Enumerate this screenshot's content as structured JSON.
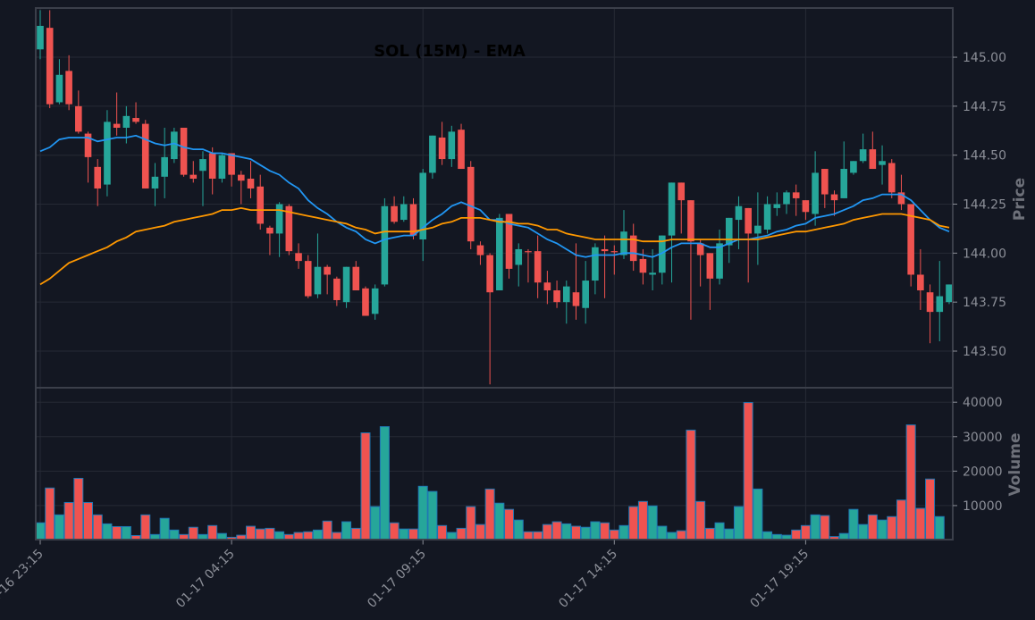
{
  "chart_data": {
    "type": "candlestick",
    "title": "SOL (15M) - EMA",
    "colors": {
      "background": "#131722",
      "up": "#26a69a",
      "down": "#ef5350",
      "ema_fast": "#2196f3",
      "ema_slow": "#ff9800",
      "grid": "#262a35",
      "axis": "#3b3f4a",
      "volume_edge": "#1f77b4"
    },
    "price_panel": {
      "ylabel": "Price",
      "ylim": [
        143.313,
        145.251
      ],
      "yticks": [
        143.5,
        143.75,
        144.0,
        144.25,
        144.5,
        144.75,
        145.0
      ],
      "ytick_labels": [
        "143.50",
        "143.75",
        "144.00",
        "144.25",
        "144.50",
        "144.75",
        "145.00"
      ],
      "grid": true,
      "ohlc_fields": [
        "open",
        "high",
        "low",
        "close"
      ],
      "ohlc": [
        [
          145.04,
          145.24,
          144.99,
          145.16
        ],
        [
          145.15,
          145.24,
          144.74,
          144.76
        ],
        [
          144.77,
          144.99,
          144.76,
          144.91
        ],
        [
          144.93,
          145.01,
          144.73,
          144.76
        ],
        [
          144.75,
          144.83,
          144.61,
          144.62
        ],
        [
          144.61,
          144.62,
          144.36,
          144.49
        ],
        [
          144.44,
          144.48,
          144.24,
          144.33
        ],
        [
          144.35,
          144.73,
          144.29,
          144.67
        ],
        [
          144.66,
          144.82,
          144.6,
          144.64
        ],
        [
          144.64,
          144.75,
          144.56,
          144.7
        ],
        [
          144.69,
          144.77,
          144.66,
          144.67
        ],
        [
          144.66,
          144.68,
          144.33,
          144.33
        ],
        [
          144.33,
          144.46,
          144.24,
          144.39
        ],
        [
          144.39,
          144.64,
          144.28,
          144.49
        ],
        [
          144.48,
          144.64,
          144.46,
          144.62
        ],
        [
          144.64,
          144.64,
          144.39,
          144.4
        ],
        [
          144.4,
          144.47,
          144.36,
          144.38
        ],
        [
          144.42,
          144.52,
          144.24,
          144.48
        ],
        [
          144.51,
          144.54,
          144.3,
          144.38
        ],
        [
          144.38,
          144.51,
          144.36,
          144.5
        ],
        [
          144.51,
          144.51,
          144.34,
          144.4
        ],
        [
          144.4,
          144.42,
          144.25,
          144.37
        ],
        [
          144.38,
          144.47,
          144.28,
          144.33
        ],
        [
          144.34,
          144.4,
          144.12,
          144.15
        ],
        [
          144.13,
          144.14,
          143.99,
          144.1
        ],
        [
          144.1,
          144.26,
          143.98,
          144.25
        ],
        [
          144.24,
          144.25,
          143.99,
          144.01
        ],
        [
          144.0,
          144.05,
          143.92,
          143.96
        ],
        [
          143.96,
          143.99,
          143.77,
          143.78
        ],
        [
          143.79,
          144.1,
          143.77,
          143.93
        ],
        [
          143.93,
          143.94,
          143.79,
          143.89
        ],
        [
          143.87,
          143.88,
          143.73,
          143.76
        ],
        [
          143.75,
          143.93,
          143.72,
          143.93
        ],
        [
          143.93,
          143.96,
          143.81,
          143.81
        ],
        [
          143.82,
          143.83,
          143.68,
          143.68
        ],
        [
          143.69,
          143.84,
          143.66,
          143.82
        ],
        [
          143.84,
          144.28,
          143.83,
          144.24
        ],
        [
          144.24,
          144.29,
          144.15,
          144.16
        ],
        [
          144.17,
          144.29,
          144.16,
          144.25
        ],
        [
          144.25,
          144.28,
          144.07,
          144.09
        ],
        [
          144.07,
          144.43,
          143.96,
          144.41
        ],
        [
          144.41,
          144.6,
          144.38,
          144.6
        ],
        [
          144.59,
          144.67,
          144.45,
          144.48
        ],
        [
          144.48,
          144.65,
          144.44,
          144.62
        ],
        [
          144.63,
          144.66,
          144.43,
          144.43
        ],
        [
          144.44,
          144.47,
          144.02,
          144.06
        ],
        [
          144.04,
          144.06,
          143.94,
          143.99
        ],
        [
          143.99,
          144.0,
          143.33,
          143.8
        ],
        [
          143.81,
          144.2,
          143.81,
          144.18
        ],
        [
          144.2,
          144.2,
          143.87,
          143.92
        ],
        [
          143.94,
          144.05,
          143.83,
          144.02
        ],
        [
          144.01,
          144.02,
          143.85,
          144.005
        ],
        [
          144.01,
          144.09,
          143.77,
          143.85
        ],
        [
          143.85,
          143.91,
          143.74,
          143.81
        ],
        [
          143.81,
          143.86,
          143.72,
          143.75
        ],
        [
          143.75,
          143.86,
          143.64,
          143.83
        ],
        [
          143.8,
          144.05,
          143.66,
          143.73
        ],
        [
          143.72,
          143.96,
          143.64,
          143.86
        ],
        [
          143.86,
          144.05,
          143.79,
          144.03
        ],
        [
          144.02,
          144.09,
          143.77,
          144.01
        ],
        [
          144.01,
          144.04,
          143.89,
          144.005
        ],
        [
          143.99,
          144.22,
          143.97,
          144.11
        ],
        [
          144.09,
          144.15,
          143.91,
          143.96
        ],
        [
          143.97,
          144.02,
          143.84,
          143.9
        ],
        [
          143.89,
          144.02,
          143.81,
          143.9
        ],
        [
          143.9,
          144.09,
          143.84,
          144.09
        ],
        [
          144.09,
          144.36,
          143.85,
          144.36
        ],
        [
          144.36,
          144.36,
          144.1,
          144.27
        ],
        [
          144.27,
          144.27,
          143.66,
          144.06
        ],
        [
          144.05,
          144.07,
          143.83,
          143.99
        ],
        [
          144.0,
          144.0,
          143.71,
          143.87
        ],
        [
          143.87,
          144.12,
          143.84,
          144.05
        ],
        [
          144.04,
          144.18,
          143.95,
          144.18
        ],
        [
          144.17,
          144.29,
          144.02,
          144.24
        ],
        [
          144.23,
          144.23,
          143.85,
          144.1
        ],
        [
          144.1,
          144.31,
          143.94,
          144.14
        ],
        [
          144.12,
          144.29,
          144.1,
          144.25
        ],
        [
          144.23,
          144.31,
          144.19,
          144.25
        ],
        [
          144.25,
          144.32,
          144.2,
          144.31
        ],
        [
          144.31,
          144.35,
          144.19,
          144.28
        ],
        [
          144.27,
          144.27,
          144.17,
          144.21
        ],
        [
          144.2,
          144.52,
          144.14,
          144.41
        ],
        [
          144.43,
          144.43,
          144.23,
          144.3
        ],
        [
          144.3,
          144.32,
          144.19,
          144.27
        ],
        [
          144.28,
          144.57,
          144.28,
          144.43
        ],
        [
          144.41,
          144.47,
          144.4,
          144.47
        ],
        [
          144.47,
          144.61,
          144.46,
          144.53
        ],
        [
          144.53,
          144.62,
          144.43,
          144.43
        ],
        [
          144.45,
          144.55,
          144.35,
          144.47
        ],
        [
          144.46,
          144.48,
          144.28,
          144.31
        ],
        [
          144.31,
          144.4,
          144.22,
          144.25
        ],
        [
          144.25,
          144.25,
          143.83,
          143.89
        ],
        [
          143.89,
          144.02,
          143.71,
          143.81
        ],
        [
          143.8,
          143.84,
          143.54,
          143.7
        ],
        [
          143.7,
          143.96,
          143.55,
          143.78
        ],
        [
          143.75,
          143.84,
          143.74,
          143.84
        ]
      ],
      "lines": [
        {
          "color": "#2196f3",
          "values": [
            144.52,
            144.54,
            144.58,
            144.59,
            144.59,
            144.59,
            144.57,
            144.58,
            144.59,
            144.59,
            144.6,
            144.58,
            144.56,
            144.55,
            144.56,
            144.54,
            144.53,
            144.53,
            144.51,
            144.51,
            144.5,
            144.49,
            144.48,
            144.45,
            144.42,
            144.4,
            144.36,
            144.33,
            144.27,
            144.23,
            144.2,
            144.16,
            144.13,
            144.11,
            144.07,
            144.05,
            144.07,
            144.08,
            144.09,
            144.09,
            144.13,
            144.17,
            144.2,
            144.24,
            144.26,
            144.24,
            144.22,
            144.17,
            144.17,
            144.15,
            144.14,
            144.13,
            144.1,
            144.07,
            144.05,
            144.02,
            143.99,
            143.98,
            143.99,
            143.99,
            143.99,
            144.0,
            144.0,
            143.99,
            143.98,
            144.0,
            144.03,
            144.05,
            144.05,
            144.05,
            144.03,
            144.03,
            144.05,
            144.07,
            144.07,
            144.08,
            144.09,
            144.11,
            144.12,
            144.14,
            144.15,
            144.18,
            144.19,
            144.2,
            144.22,
            144.24,
            144.27,
            144.28,
            144.3,
            144.3,
            144.3,
            144.27,
            144.22,
            144.17,
            144.13,
            144.11
          ]
        },
        {
          "color": "#ff9800",
          "values": [
            143.84,
            143.87,
            143.91,
            143.95,
            143.97,
            143.99,
            144.01,
            144.03,
            144.06,
            144.08,
            144.11,
            144.12,
            144.13,
            144.14,
            144.16,
            144.17,
            144.18,
            144.19,
            144.2,
            144.22,
            144.22,
            144.23,
            144.22,
            144.22,
            144.22,
            144.22,
            144.21,
            144.2,
            144.19,
            144.18,
            144.17,
            144.16,
            144.15,
            144.13,
            144.12,
            144.1,
            144.11,
            144.11,
            144.11,
            144.11,
            144.12,
            144.13,
            144.15,
            144.16,
            144.18,
            144.18,
            144.18,
            144.17,
            144.16,
            144.16,
            144.15,
            144.15,
            144.14,
            144.12,
            144.12,
            144.1,
            144.09,
            144.08,
            144.07,
            144.07,
            144.07,
            144.07,
            144.07,
            144.06,
            144.06,
            144.06,
            144.07,
            144.07,
            144.07,
            144.07,
            144.07,
            144.07,
            144.07,
            144.07,
            144.07,
            144.07,
            144.08,
            144.09,
            144.1,
            144.11,
            144.11,
            144.12,
            144.13,
            144.14,
            144.15,
            144.17,
            144.18,
            144.19,
            144.2,
            144.2,
            144.2,
            144.19,
            144.18,
            144.17,
            144.14,
            144.13
          ]
        }
      ]
    },
    "volume_panel": {
      "ylabel": "Volume",
      "ylim": [
        0,
        44200
      ],
      "yticks": [
        10000,
        20000,
        30000,
        40000
      ],
      "ytick_labels": [
        "10000",
        "20000",
        "30000",
        "40000"
      ],
      "grid": true,
      "values": [
        5000,
        15100,
        7300,
        10900,
        17900,
        10900,
        7300,
        4700,
        3900,
        3900,
        1300,
        7300,
        1600,
        6300,
        2900,
        1600,
        3700,
        1600,
        4200,
        1900,
        800,
        1400,
        4000,
        3200,
        3400,
        2400,
        1600,
        2200,
        2400,
        2900,
        5500,
        2200,
        5300,
        3400,
        31100,
        9700,
        32900,
        5000,
        3200,
        3200,
        15600,
        14100,
        4200,
        2200,
        3400,
        9700,
        4500,
        14800,
        10700,
        8900,
        5800,
        2400,
        2400,
        4500,
        5300,
        4700,
        4000,
        3700,
        5300,
        5000,
        2900,
        4200,
        9700,
        11200,
        9900,
        4000,
        2200,
        2700,
        31900,
        11200,
        3400,
        5000,
        3200,
        9700,
        39900,
        14800,
        2400,
        1600,
        1400,
        2900,
        4200,
        7300,
        7100,
        1000,
        1900,
        8900,
        4500,
        7300,
        5800,
        6800,
        11600,
        33400,
        9200,
        17700,
        6800,
        null
      ]
    },
    "xticks": [
      {
        "index": 0,
        "label": "01-16 23:15"
      },
      {
        "index": 20,
        "label": "01-17 04:15"
      },
      {
        "index": 40,
        "label": "01-17 09:15"
      },
      {
        "index": 60,
        "label": "01-17 14:15"
      },
      {
        "index": 80,
        "label": "01-17 19:15"
      }
    ]
  }
}
